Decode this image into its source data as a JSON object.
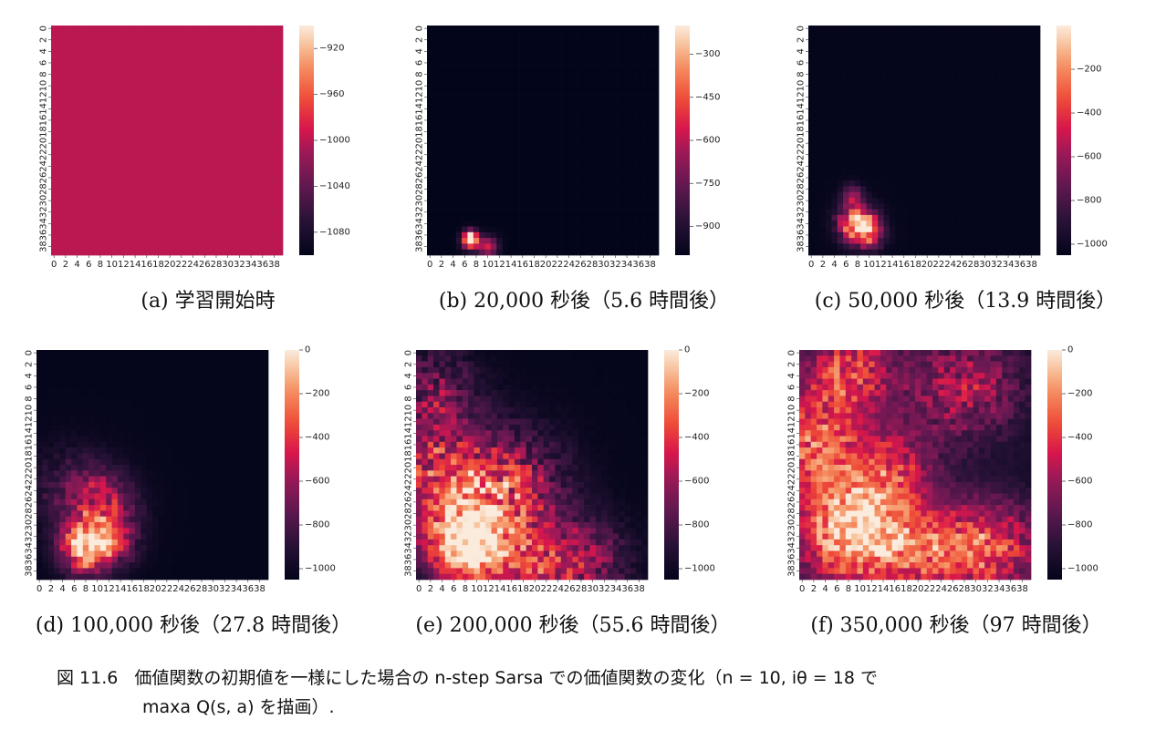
{
  "figure": {
    "label": "図 11.6",
    "caption_line1": "価値関数の初期値を一様にした場合の n-step Sarsa での価値関数の変化（n = 10, iθ = 18 で",
    "caption_line2": "maxa Q(s, a) を描画）."
  },
  "chart_data": [
    {
      "type": "heatmap",
      "caption": "(a) 学習開始時",
      "x_ticks": [
        "0",
        "2",
        "4",
        "6",
        "8",
        "10",
        "12",
        "14",
        "16",
        "18",
        "20",
        "22",
        "24",
        "26",
        "28",
        "30",
        "32",
        "34",
        "36",
        "38"
      ],
      "y_ticks": [
        "0",
        "2",
        "4",
        "6",
        "8",
        "10",
        "12",
        "14",
        "16",
        "18",
        "20",
        "22",
        "24",
        "26",
        "28",
        "30",
        "32",
        "34",
        "36",
        "38"
      ],
      "colorbar_ticks": [
        -920,
        -960,
        -1000,
        -1040,
        -1080
      ],
      "vmin": -1100,
      "vmax": -900,
      "grid_size": 40,
      "background_value": -1000,
      "blobs": []
    },
    {
      "type": "heatmap",
      "caption": "(b) 20,000 秒後（5.6 時間後）",
      "x_ticks": [
        "0",
        "2",
        "4",
        "6",
        "8",
        "10",
        "12",
        "14",
        "16",
        "18",
        "20",
        "22",
        "24",
        "26",
        "28",
        "30",
        "32",
        "34",
        "36",
        "38"
      ],
      "y_ticks": [
        "0",
        "2",
        "4",
        "6",
        "8",
        "10",
        "12",
        "14",
        "16",
        "18",
        "20",
        "22",
        "24",
        "26",
        "28",
        "30",
        "32",
        "34",
        "36",
        "38"
      ],
      "colorbar_ticks": [
        -300,
        -450,
        -600,
        -750,
        -900
      ],
      "vmin": -1000,
      "vmax": -200,
      "grid_size": 40,
      "background_value": -1000,
      "blobs": [
        [
          7,
          37,
          1.0,
          800,
          0
        ],
        [
          10,
          38,
          1.2,
          450,
          0
        ],
        [
          7,
          36,
          0.8,
          300,
          0
        ]
      ]
    },
    {
      "type": "heatmap",
      "caption": "(c) 50,000 秒後（13.9 時間後）",
      "x_ticks": [
        "0",
        "2",
        "4",
        "6",
        "8",
        "10",
        "12",
        "14",
        "16",
        "18",
        "20",
        "22",
        "24",
        "26",
        "28",
        "30",
        "32",
        "34",
        "36",
        "38"
      ],
      "y_ticks": [
        "0",
        "2",
        "4",
        "6",
        "8",
        "10",
        "12",
        "14",
        "16",
        "18",
        "20",
        "22",
        "24",
        "26",
        "28",
        "30",
        "32",
        "34",
        "36",
        "38"
      ],
      "colorbar_ticks": [
        -200,
        -400,
        -600,
        -800,
        -1000
      ],
      "vmin": -1050,
      "vmax": 0,
      "grid_size": 40,
      "background_value": -1040,
      "blobs": [
        [
          8,
          34,
          2.2,
          1000,
          0.35
        ],
        [
          7,
          29,
          1.2,
          500,
          0.3
        ],
        [
          10,
          36,
          1.8,
          450,
          0.35
        ]
      ]
    },
    {
      "type": "heatmap",
      "caption": "(d) 100,000 秒後（27.8 時間後）",
      "x_ticks": [
        "0",
        "2",
        "4",
        "6",
        "8",
        "10",
        "12",
        "14",
        "16",
        "18",
        "20",
        "22",
        "24",
        "26",
        "28",
        "30",
        "32",
        "34",
        "36",
        "38"
      ],
      "y_ticks": [
        "0",
        "2",
        "4",
        "6",
        "8",
        "10",
        "12",
        "14",
        "16",
        "18",
        "20",
        "22",
        "24",
        "26",
        "28",
        "30",
        "32",
        "34",
        "36",
        "38"
      ],
      "colorbar_ticks": [
        0,
        -200,
        -400,
        -600,
        -800,
        -1000
      ],
      "vmin": -1050,
      "vmax": 0,
      "grid_size": 40,
      "background_value": -1040,
      "blobs": [
        [
          8,
          34,
          3.0,
          1000,
          0.35
        ],
        [
          11,
          27,
          4.0,
          450,
          0.5
        ],
        [
          6,
          24,
          5.0,
          250,
          0.55
        ],
        [
          13,
          33,
          3.0,
          350,
          0.5
        ]
      ]
    },
    {
      "type": "heatmap",
      "caption": "(e) 200,000 秒後（55.6 時間後）",
      "x_ticks": [
        "0",
        "2",
        "4",
        "6",
        "8",
        "10",
        "12",
        "14",
        "16",
        "18",
        "20",
        "22",
        "24",
        "26",
        "28",
        "30",
        "32",
        "34",
        "36",
        "38"
      ],
      "y_ticks": [
        "0",
        "2",
        "4",
        "6",
        "8",
        "10",
        "12",
        "14",
        "16",
        "18",
        "20",
        "22",
        "24",
        "26",
        "28",
        "30",
        "32",
        "34",
        "36",
        "38"
      ],
      "colorbar_ticks": [
        0,
        -200,
        -400,
        -600,
        -800,
        -1000
      ],
      "vmin": -1050,
      "vmax": 0,
      "grid_size": 40,
      "background_value": -1040,
      "blobs": [
        [
          8,
          33,
          5.0,
          1050,
          0.3
        ],
        [
          1,
          20,
          7.0,
          550,
          0.6
        ],
        [
          15,
          24,
          7.0,
          550,
          0.6
        ],
        [
          20,
          38,
          6.0,
          500,
          0.5
        ],
        [
          30,
          36,
          5.0,
          300,
          0.6
        ],
        [
          3,
          6,
          5.0,
          300,
          0.7
        ]
      ]
    },
    {
      "type": "heatmap",
      "caption": "(f) 350,000 秒後（97 時間後）",
      "x_ticks": [
        "0",
        "2",
        "4",
        "6",
        "8",
        "10",
        "12",
        "14",
        "16",
        "18",
        "20",
        "22",
        "24",
        "26",
        "28",
        "30",
        "32",
        "34",
        "36",
        "38"
      ],
      "y_ticks": [
        "0",
        "2",
        "4",
        "6",
        "8",
        "10",
        "12",
        "14",
        "16",
        "18",
        "20",
        "22",
        "24",
        "26",
        "28",
        "30",
        "32",
        "34",
        "36",
        "38"
      ],
      "colorbar_ticks": [
        0,
        -200,
        -400,
        -600,
        -800,
        -1000
      ],
      "vmin": -1050,
      "vmax": 0,
      "grid_size": 40,
      "background_value": -1000,
      "blobs": [
        [
          9,
          31,
          7.0,
          1000,
          0.3
        ],
        [
          2,
          16,
          6.0,
          650,
          0.4
        ],
        [
          8,
          3,
          6.0,
          600,
          0.4
        ],
        [
          28,
          6,
          7.0,
          450,
          0.5
        ],
        [
          33,
          34,
          6.0,
          600,
          0.4
        ],
        [
          22,
          35,
          6.0,
          500,
          0.4
        ],
        [
          16,
          20,
          5.0,
          400,
          0.5
        ]
      ]
    }
  ]
}
